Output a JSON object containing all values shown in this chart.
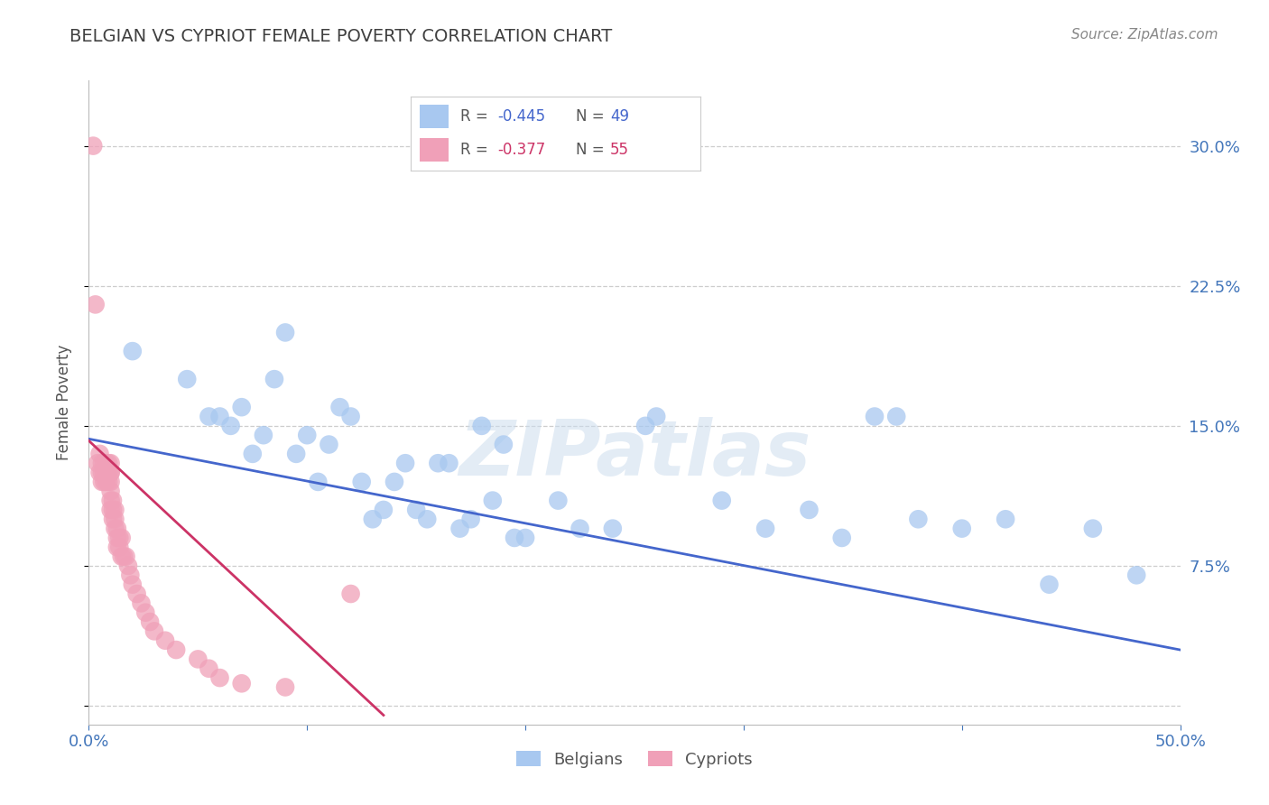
{
  "title": "BELGIAN VS CYPRIOT FEMALE POVERTY CORRELATION CHART",
  "source": "Source: ZipAtlas.com",
  "ylabel_label": "Female Poverty",
  "xlim": [
    0.0,
    0.5
  ],
  "ylim": [
    -0.01,
    0.335
  ],
  "yticks": [
    0.0,
    0.075,
    0.15,
    0.225,
    0.3
  ],
  "ytick_labels": [
    "",
    "7.5%",
    "15.0%",
    "22.5%",
    "30.0%"
  ],
  "xticks": [
    0.0,
    0.1,
    0.2,
    0.3,
    0.4,
    0.5
  ],
  "xtick_labels": [
    "0.0%",
    "",
    "",
    "",
    "",
    "50.0%"
  ],
  "belgians_R": -0.445,
  "belgians_N": 49,
  "cypriots_R": -0.377,
  "cypriots_N": 55,
  "blue_color": "#A8C8F0",
  "pink_color": "#F0A0B8",
  "blue_line_color": "#4466CC",
  "pink_line_color": "#CC3366",
  "legend_label_blue": "Belgians",
  "legend_label_pink": "Cypriots",
  "blue_x": [
    0.02,
    0.045,
    0.055,
    0.06,
    0.065,
    0.07,
    0.075,
    0.08,
    0.085,
    0.09,
    0.095,
    0.1,
    0.105,
    0.11,
    0.115,
    0.12,
    0.125,
    0.13,
    0.135,
    0.14,
    0.145,
    0.15,
    0.155,
    0.16,
    0.165,
    0.17,
    0.175,
    0.18,
    0.185,
    0.19,
    0.195,
    0.2,
    0.215,
    0.225,
    0.24,
    0.255,
    0.26,
    0.29,
    0.31,
    0.33,
    0.345,
    0.36,
    0.37,
    0.38,
    0.4,
    0.42,
    0.44,
    0.46,
    0.48
  ],
  "blue_y": [
    0.19,
    0.175,
    0.155,
    0.155,
    0.15,
    0.16,
    0.135,
    0.145,
    0.175,
    0.2,
    0.135,
    0.145,
    0.12,
    0.14,
    0.16,
    0.155,
    0.12,
    0.1,
    0.105,
    0.12,
    0.13,
    0.105,
    0.1,
    0.13,
    0.13,
    0.095,
    0.1,
    0.15,
    0.11,
    0.14,
    0.09,
    0.09,
    0.11,
    0.095,
    0.095,
    0.15,
    0.155,
    0.11,
    0.095,
    0.105,
    0.09,
    0.155,
    0.155,
    0.1,
    0.095,
    0.1,
    0.065,
    0.095,
    0.07
  ],
  "pink_x": [
    0.002,
    0.003,
    0.004,
    0.005,
    0.005,
    0.006,
    0.006,
    0.006,
    0.007,
    0.007,
    0.007,
    0.008,
    0.008,
    0.008,
    0.009,
    0.009,
    0.009,
    0.01,
    0.01,
    0.01,
    0.01,
    0.01,
    0.01,
    0.01,
    0.011,
    0.011,
    0.011,
    0.012,
    0.012,
    0.012,
    0.013,
    0.013,
    0.013,
    0.014,
    0.014,
    0.015,
    0.015,
    0.016,
    0.017,
    0.018,
    0.019,
    0.02,
    0.022,
    0.024,
    0.026,
    0.028,
    0.03,
    0.035,
    0.04,
    0.05,
    0.055,
    0.06,
    0.07,
    0.09,
    0.12
  ],
  "pink_y": [
    0.3,
    0.215,
    0.13,
    0.135,
    0.125,
    0.13,
    0.125,
    0.12,
    0.13,
    0.125,
    0.12,
    0.13,
    0.125,
    0.12,
    0.13,
    0.125,
    0.12,
    0.13,
    0.125,
    0.125,
    0.12,
    0.115,
    0.11,
    0.105,
    0.11,
    0.105,
    0.1,
    0.105,
    0.1,
    0.095,
    0.095,
    0.09,
    0.085,
    0.09,
    0.085,
    0.09,
    0.08,
    0.08,
    0.08,
    0.075,
    0.07,
    0.065,
    0.06,
    0.055,
    0.05,
    0.045,
    0.04,
    0.035,
    0.03,
    0.025,
    0.02,
    0.015,
    0.012,
    0.01,
    0.06
  ],
  "watermark": "ZIPatlas",
  "background_color": "#FFFFFF",
  "grid_color": "#C8C8C8",
  "title_color": "#404040",
  "source_color": "#888888",
  "ylabel_color": "#555555",
  "right_ytick_color": "#4477BB",
  "xtick_color": "#4477BB"
}
